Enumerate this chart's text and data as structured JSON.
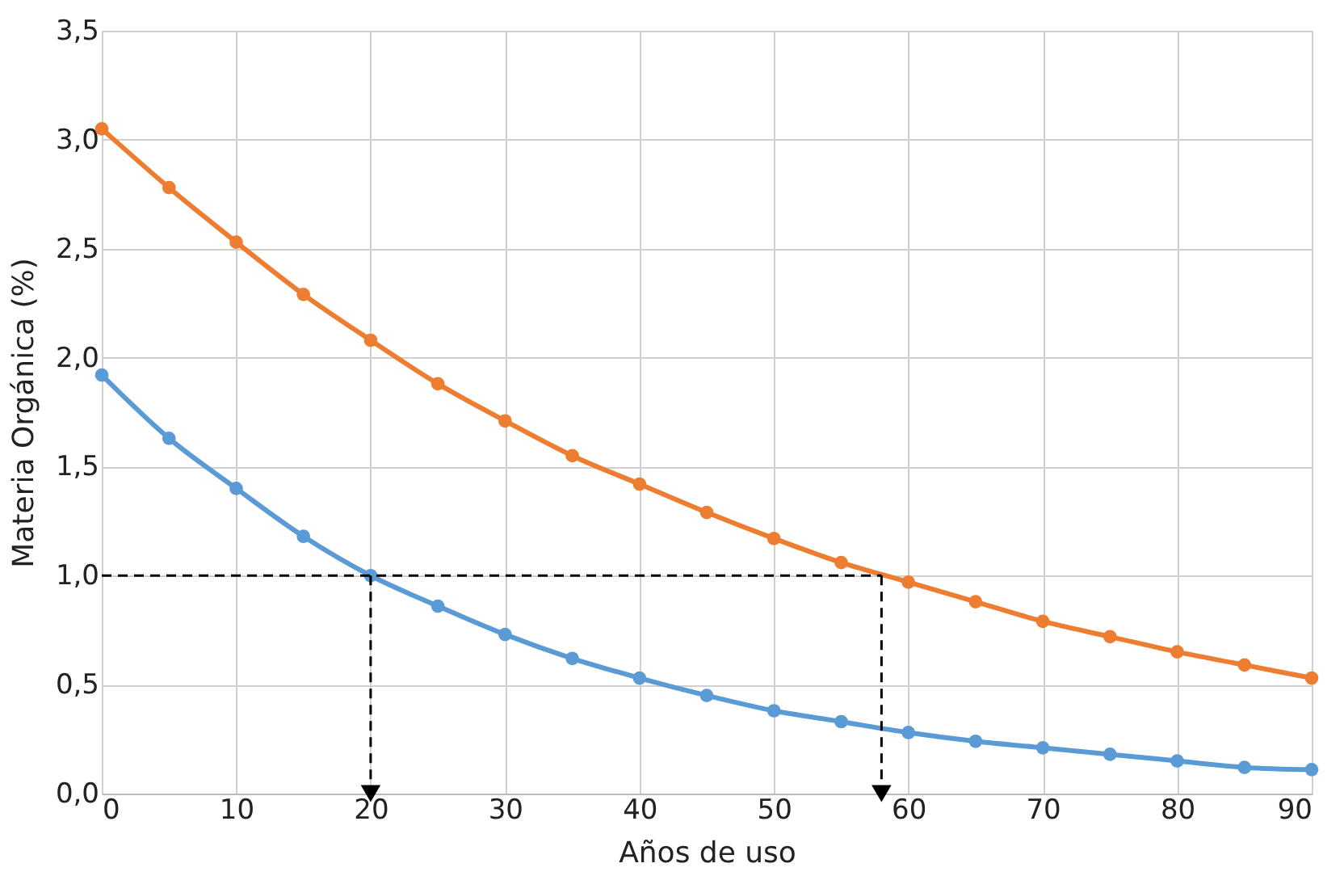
{
  "chart_data": {
    "type": "line",
    "xlabel": "Años de uso",
    "ylabel": "Materia Orgánica (%)",
    "xlim": [
      0,
      90
    ],
    "xticks": [
      0,
      10,
      20,
      30,
      40,
      50,
      60,
      70,
      80,
      90
    ],
    "ylim": [
      0,
      3.5
    ],
    "yticks": [
      {
        "value": 0,
        "label": "0,0"
      },
      {
        "value": 0.5,
        "label": "0,5"
      },
      {
        "value": 1,
        "label": "1,0"
      },
      {
        "value": 1.5,
        "label": "1,5"
      },
      {
        "value": 2,
        "label": "2,0"
      },
      {
        "value": 2.5,
        "label": "2,5"
      },
      {
        "value": 3,
        "label": "3,0"
      },
      {
        "value": 3.5,
        "label": "3,5"
      }
    ],
    "grid": true,
    "marker": "circle",
    "x": [
      0,
      5,
      10,
      15,
      20,
      25,
      30,
      35,
      40,
      45,
      50,
      55,
      60,
      65,
      70,
      75,
      80,
      85,
      90
    ],
    "series": [
      {
        "color": "#ed7d31",
        "line_style": "solid",
        "values": [
          3.05,
          2.78,
          2.53,
          2.29,
          2.08,
          1.88,
          1.71,
          1.55,
          1.42,
          1.29,
          1.17,
          1.06,
          0.97,
          0.88,
          0.79,
          0.72,
          0.65,
          0.59,
          0.53
        ]
      },
      {
        "color": "#5b9bd5",
        "line_style": "solid",
        "values": [
          1.92,
          1.63,
          1.4,
          1.18,
          1.0,
          0.86,
          0.73,
          0.62,
          0.53,
          0.45,
          0.38,
          0.33,
          0.28,
          0.24,
          0.21,
          0.18,
          0.15,
          0.12,
          0.11
        ]
      },
      {
        "type": "line",
        "color": "#000000",
        "line_style": "dashed",
        "marker": "none",
        "x": [
          0,
          58
        ],
        "values": [
          1.0,
          1.0
        ]
      },
      {
        "type": "line",
        "color": "#000000",
        "line_style": "dashed",
        "marker": "triangle",
        "x": [
          20,
          20
        ],
        "values": [
          1.0,
          0.0
        ]
      },
      {
        "type": "line",
        "color": "#000000",
        "line_style": "dashed",
        "marker": "triangle",
        "x": [
          58,
          58
        ],
        "values": [
          1.0,
          0.0
        ]
      }
    ]
  }
}
